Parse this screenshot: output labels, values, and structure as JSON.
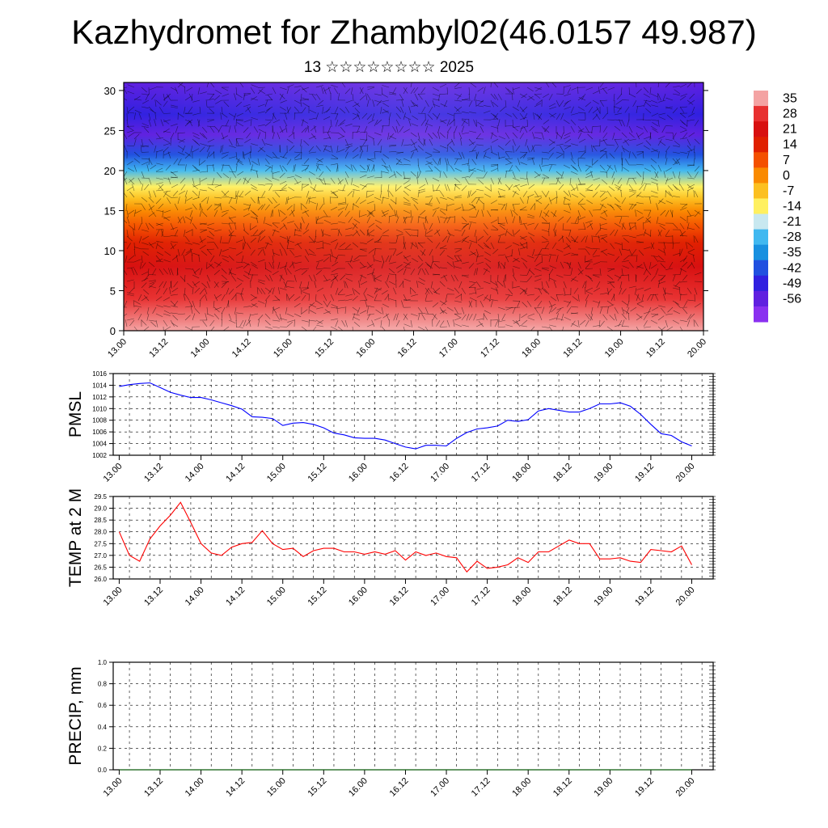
{
  "title": "Kazhydromet for Zhambyl02(46.0157 49.987)",
  "subtitle": "13 ☆☆☆☆☆☆☆☆ 2025",
  "colors": {
    "pmsl_line": "#0000ff",
    "temp_line": "#ff0000",
    "precip_line": "#006400",
    "grid": "#000000"
  },
  "colorbar": {
    "labels": [
      "35",
      "28",
      "21",
      "14",
      "7",
      "0",
      "-7",
      "-14",
      "-21",
      "-28",
      "-35",
      "-42",
      "-49",
      "-56"
    ],
    "colors": [
      "#f4a3a3",
      "#e83030",
      "#d81010",
      "#e02000",
      "#f45000",
      "#fa8a00",
      "#fcc020",
      "#fff060",
      "#c8e8f0",
      "#40b8f0",
      "#1890e0",
      "#2050e0",
      "#3020e0",
      "#6020e0",
      "#8a30f0"
    ]
  },
  "chart_data": [
    {
      "type": "heatmap",
      "name": "cross-section",
      "x_ticks": [
        "13.00",
        "13.12",
        "14.00",
        "14.12",
        "15.00",
        "15.12",
        "16.00",
        "16.12",
        "17.00",
        "17.12",
        "18.00",
        "18.12",
        "19.00",
        "19.12",
        "20.00"
      ],
      "y_ticks": [
        "0",
        "5",
        "10",
        "15",
        "20",
        "25",
        "30"
      ],
      "ylim": [
        0,
        31
      ],
      "band_values": [
        {
          "level": 0,
          "value": 35
        },
        {
          "level": 4,
          "value": 28
        },
        {
          "level": 8,
          "value": 21
        },
        {
          "level": 11,
          "value": 14
        },
        {
          "level": 13,
          "value": 7
        },
        {
          "level": 15,
          "value": 0
        },
        {
          "level": 16.5,
          "value": -7
        },
        {
          "level": 18,
          "value": -14
        },
        {
          "level": 20,
          "value": -28
        },
        {
          "level": 22,
          "value": -42
        },
        {
          "level": 24.5,
          "value": -56
        },
        {
          "level": 27,
          "value": -49
        },
        {
          "level": 31,
          "value": -56
        }
      ]
    },
    {
      "type": "line",
      "ylabel": "PMSL",
      "ylim": [
        1002,
        1016
      ],
      "y_ticks": [
        "1002",
        "1004",
        "1006",
        "1008",
        "1010",
        "1012",
        "1014",
        "1016"
      ],
      "x_ticks": [
        "13.00",
        "13.12",
        "14.00",
        "14.12",
        "15.00",
        "15.12",
        "16.00",
        "16.12",
        "17.00",
        "17.12",
        "18.00",
        "18.12",
        "19.00",
        "19.12",
        "20.00"
      ],
      "values": [
        1013.8,
        1014.1,
        1014.3,
        1014.4,
        1013.6,
        1012.8,
        1012.3,
        1011.9,
        1011.9,
        1011.5,
        1011.0,
        1010.5,
        1009.9,
        1008.6,
        1008.5,
        1008.3,
        1007.1,
        1007.5,
        1007.6,
        1007.3,
        1006.7,
        1005.8,
        1005.5,
        1005.0,
        1004.9,
        1004.9,
        1004.6,
        1004.0,
        1003.4,
        1003.1,
        1003.7,
        1003.7,
        1003.6,
        1004.9,
        1005.9,
        1006.5,
        1006.7,
        1007.0,
        1008.0,
        1007.8,
        1008.1,
        1009.6,
        1010.0,
        1009.7,
        1009.4,
        1009.4,
        1010.0,
        1010.8,
        1010.8,
        1011.0,
        1010.4,
        1009.0,
        1007.3,
        1005.7,
        1005.4,
        1004.3,
        1003.6
      ]
    },
    {
      "type": "line",
      "ylabel": "TEMP at 2 M",
      "ylim": [
        26.0,
        29.5
      ],
      "y_ticks": [
        "26.0",
        "26.5",
        "27.0",
        "27.5",
        "28.0",
        "28.5",
        "29.0",
        "29.5"
      ],
      "x_ticks": [
        "13.00",
        "13.12",
        "14.00",
        "14.12",
        "15.00",
        "15.12",
        "16.00",
        "16.12",
        "17.00",
        "17.12",
        "18.00",
        "18.12",
        "19.00",
        "19.12",
        "20.00"
      ],
      "values": [
        28.0,
        27.0,
        26.75,
        27.7,
        28.25,
        28.7,
        29.25,
        28.4,
        27.5,
        27.1,
        27.0,
        27.35,
        27.5,
        27.55,
        28.05,
        27.5,
        27.25,
        27.3,
        26.95,
        27.2,
        27.3,
        27.3,
        27.15,
        27.15,
        27.05,
        27.15,
        27.05,
        27.2,
        26.8,
        27.15,
        27.0,
        27.1,
        26.95,
        26.9,
        26.3,
        26.75,
        26.45,
        26.5,
        26.6,
        26.9,
        26.7,
        27.15,
        27.15,
        27.4,
        27.65,
        27.5,
        27.5,
        26.85,
        26.85,
        26.9,
        26.75,
        26.7,
        27.25,
        27.2,
        27.15,
        27.4,
        26.6
      ]
    },
    {
      "type": "line",
      "ylabel": "PRECIP, mm",
      "ylim": [
        0.0,
        1.0
      ],
      "y_ticks": [
        "0.0",
        "0.2",
        "0.4",
        "0.6",
        "0.8",
        "1.0"
      ],
      "x_ticks": [
        "13.00",
        "13.12",
        "14.00",
        "14.12",
        "15.00",
        "15.12",
        "16.00",
        "16.12",
        "17.00",
        "17.12",
        "18.00",
        "18.12",
        "19.00",
        "19.12",
        "20.00"
      ],
      "values": [
        0,
        0,
        0,
        0,
        0,
        0,
        0,
        0,
        0,
        0,
        0,
        0,
        0,
        0,
        0,
        0,
        0,
        0,
        0,
        0,
        0,
        0,
        0,
        0,
        0,
        0,
        0,
        0,
        0,
        0,
        0,
        0,
        0,
        0,
        0,
        0,
        0,
        0,
        0,
        0,
        0,
        0,
        0,
        0,
        0,
        0,
        0,
        0,
        0,
        0,
        0,
        0,
        0,
        0,
        0,
        0,
        0
      ]
    }
  ]
}
